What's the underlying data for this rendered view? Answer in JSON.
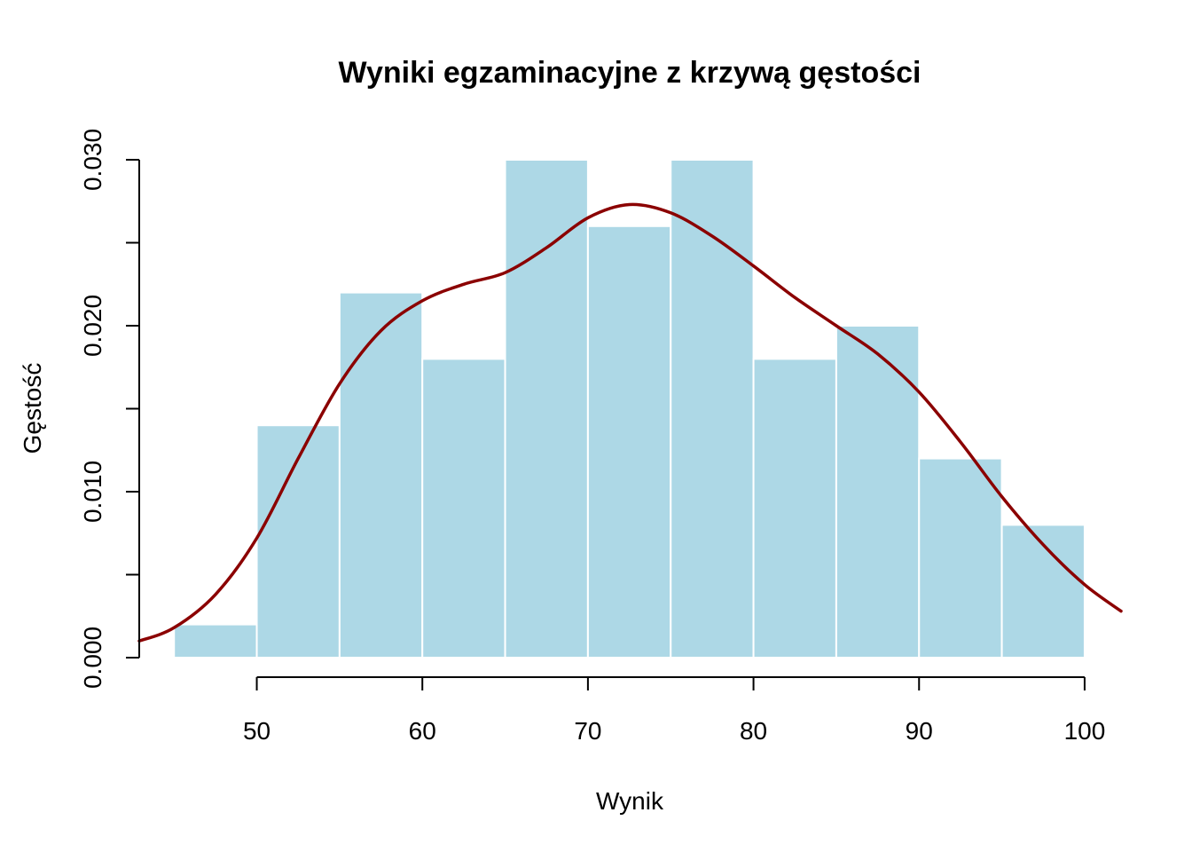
{
  "chart_data": {
    "type": "bar",
    "title": "Wyniki egzaminacyjne z krzywą gęstości",
    "xlabel": "Wynik",
    "ylabel": "Gęstość",
    "bins": [
      {
        "from": 45,
        "to": 50,
        "density": 0.002
      },
      {
        "from": 50,
        "to": 55,
        "density": 0.014
      },
      {
        "from": 55,
        "to": 60,
        "density": 0.022
      },
      {
        "from": 60,
        "to": 65,
        "density": 0.018
      },
      {
        "from": 65,
        "to": 70,
        "density": 0.03
      },
      {
        "from": 70,
        "to": 75,
        "density": 0.026
      },
      {
        "from": 75,
        "to": 80,
        "density": 0.03
      },
      {
        "from": 80,
        "to": 85,
        "density": 0.018
      },
      {
        "from": 85,
        "to": 90,
        "density": 0.02
      },
      {
        "from": 90,
        "to": 95,
        "density": 0.012
      },
      {
        "from": 95,
        "to": 100,
        "density": 0.008
      }
    ],
    "density_curve": {
      "x": [
        42.9,
        45,
        47.5,
        50,
        52.5,
        55,
        57.5,
        60,
        62.5,
        65,
        67.5,
        70,
        72.5,
        75,
        77.5,
        80,
        82.5,
        85,
        87.5,
        90,
        92.5,
        95,
        97.5,
        100,
        102.2
      ],
      "y": [
        0.001,
        0.0018,
        0.0038,
        0.0072,
        0.012,
        0.0165,
        0.0197,
        0.0215,
        0.0225,
        0.0232,
        0.0247,
        0.0265,
        0.0273,
        0.0268,
        0.0254,
        0.0236,
        0.0217,
        0.02,
        0.0183,
        0.016,
        0.013,
        0.0097,
        0.0068,
        0.0044,
        0.0028
      ]
    },
    "x_ticks": [
      50,
      60,
      70,
      80,
      90,
      100
    ],
    "y_ticks": [
      0.0,
      0.005,
      0.01,
      0.015,
      0.02,
      0.025,
      0.03
    ],
    "y_tick_labels": [
      "0.000",
      "",
      "0.010",
      "",
      "0.020",
      "",
      "0.030"
    ],
    "xlim": [
      42.9,
      102.2
    ],
    "ylim": [
      0,
      0.03
    ],
    "grid": false,
    "legend": "none",
    "colors": {
      "bar_fill": "#add8e6",
      "bar_border": "#ffffff",
      "curve": "#8b0000",
      "axis": "#000000"
    }
  }
}
